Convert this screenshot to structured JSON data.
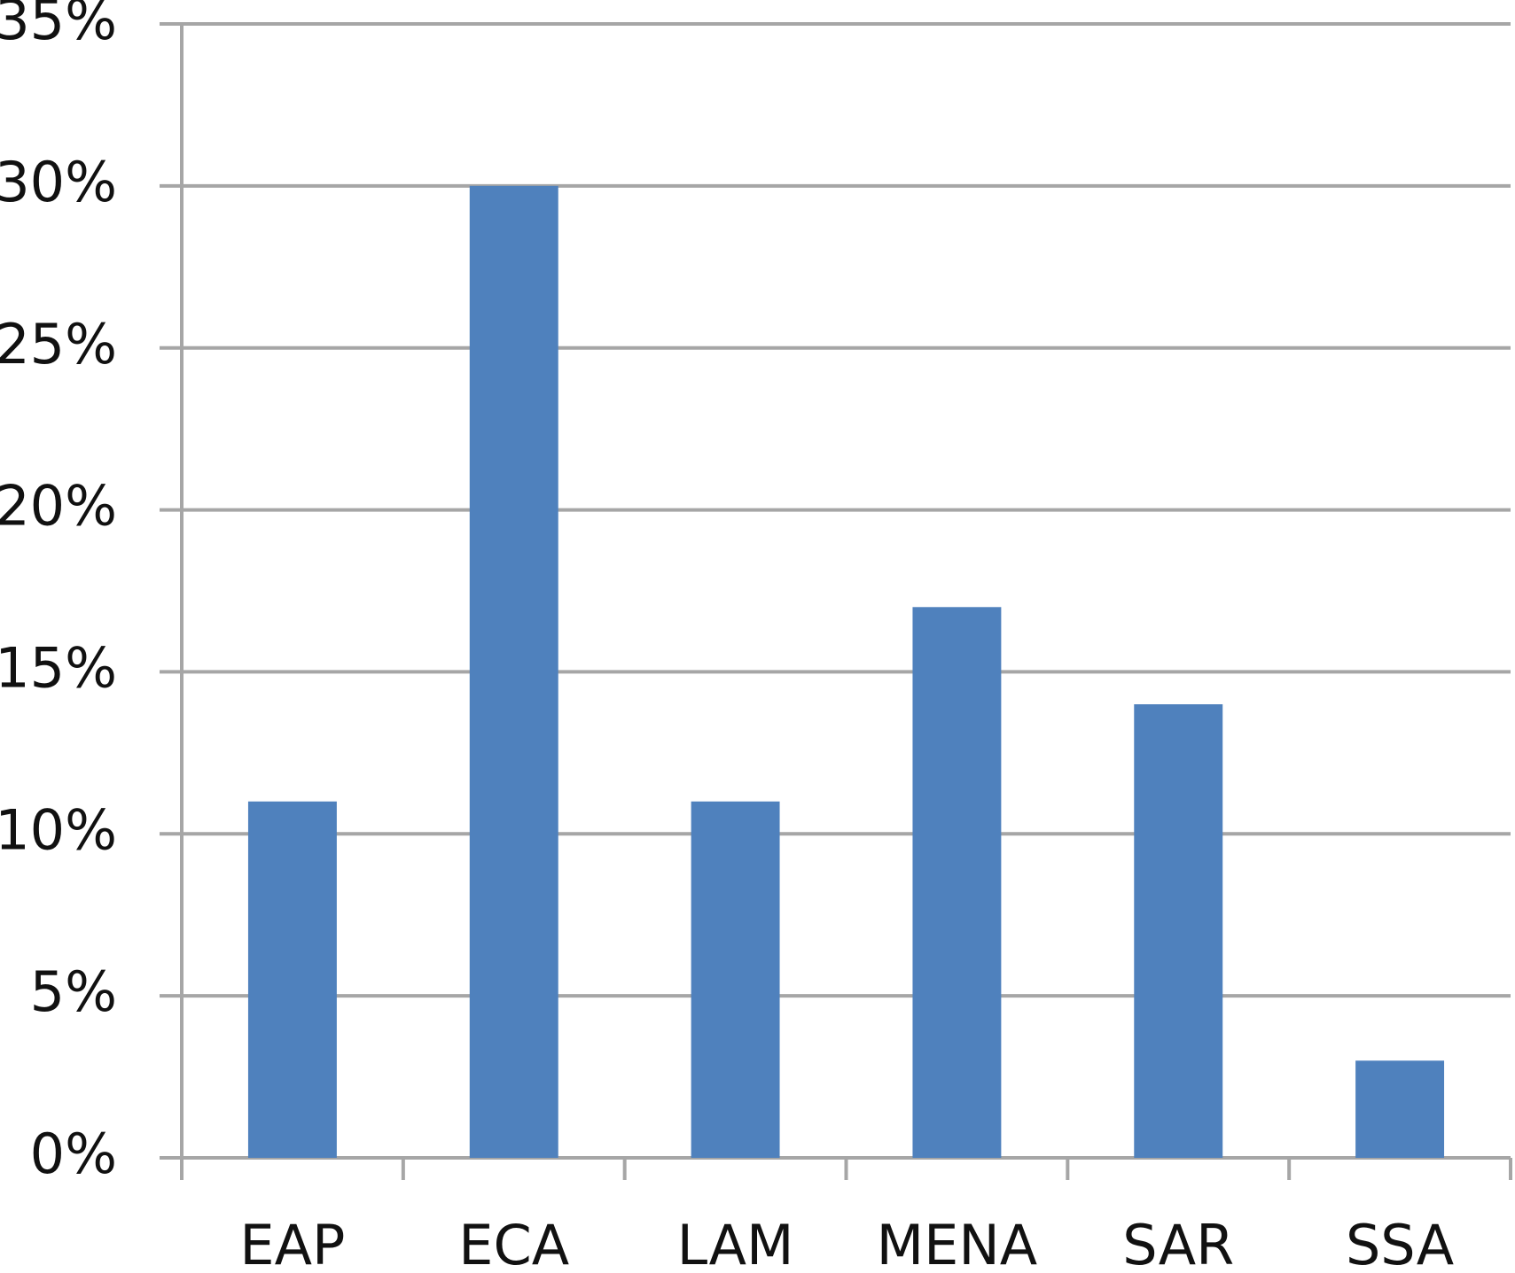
{
  "chart_data": {
    "type": "bar",
    "categories": [
      "EAP",
      "ECA",
      "LAM",
      "MENA",
      "SAR",
      "SSA"
    ],
    "values": [
      11,
      30,
      11,
      17,
      14,
      3
    ],
    "color": "#4f81bd",
    "ylim": [
      0,
      35
    ],
    "yticks": [
      {
        "value": 0,
        "label": "0%"
      },
      {
        "value": 5,
        "label": "5%"
      },
      {
        "value": 10,
        "label": "10%"
      },
      {
        "value": 15,
        "label": "15%"
      },
      {
        "value": 20,
        "label": "20%"
      },
      {
        "value": 25,
        "label": "25%"
      },
      {
        "value": 30,
        "label": "30%"
      },
      {
        "value": 35,
        "label": "35%"
      }
    ],
    "grid": true
  }
}
